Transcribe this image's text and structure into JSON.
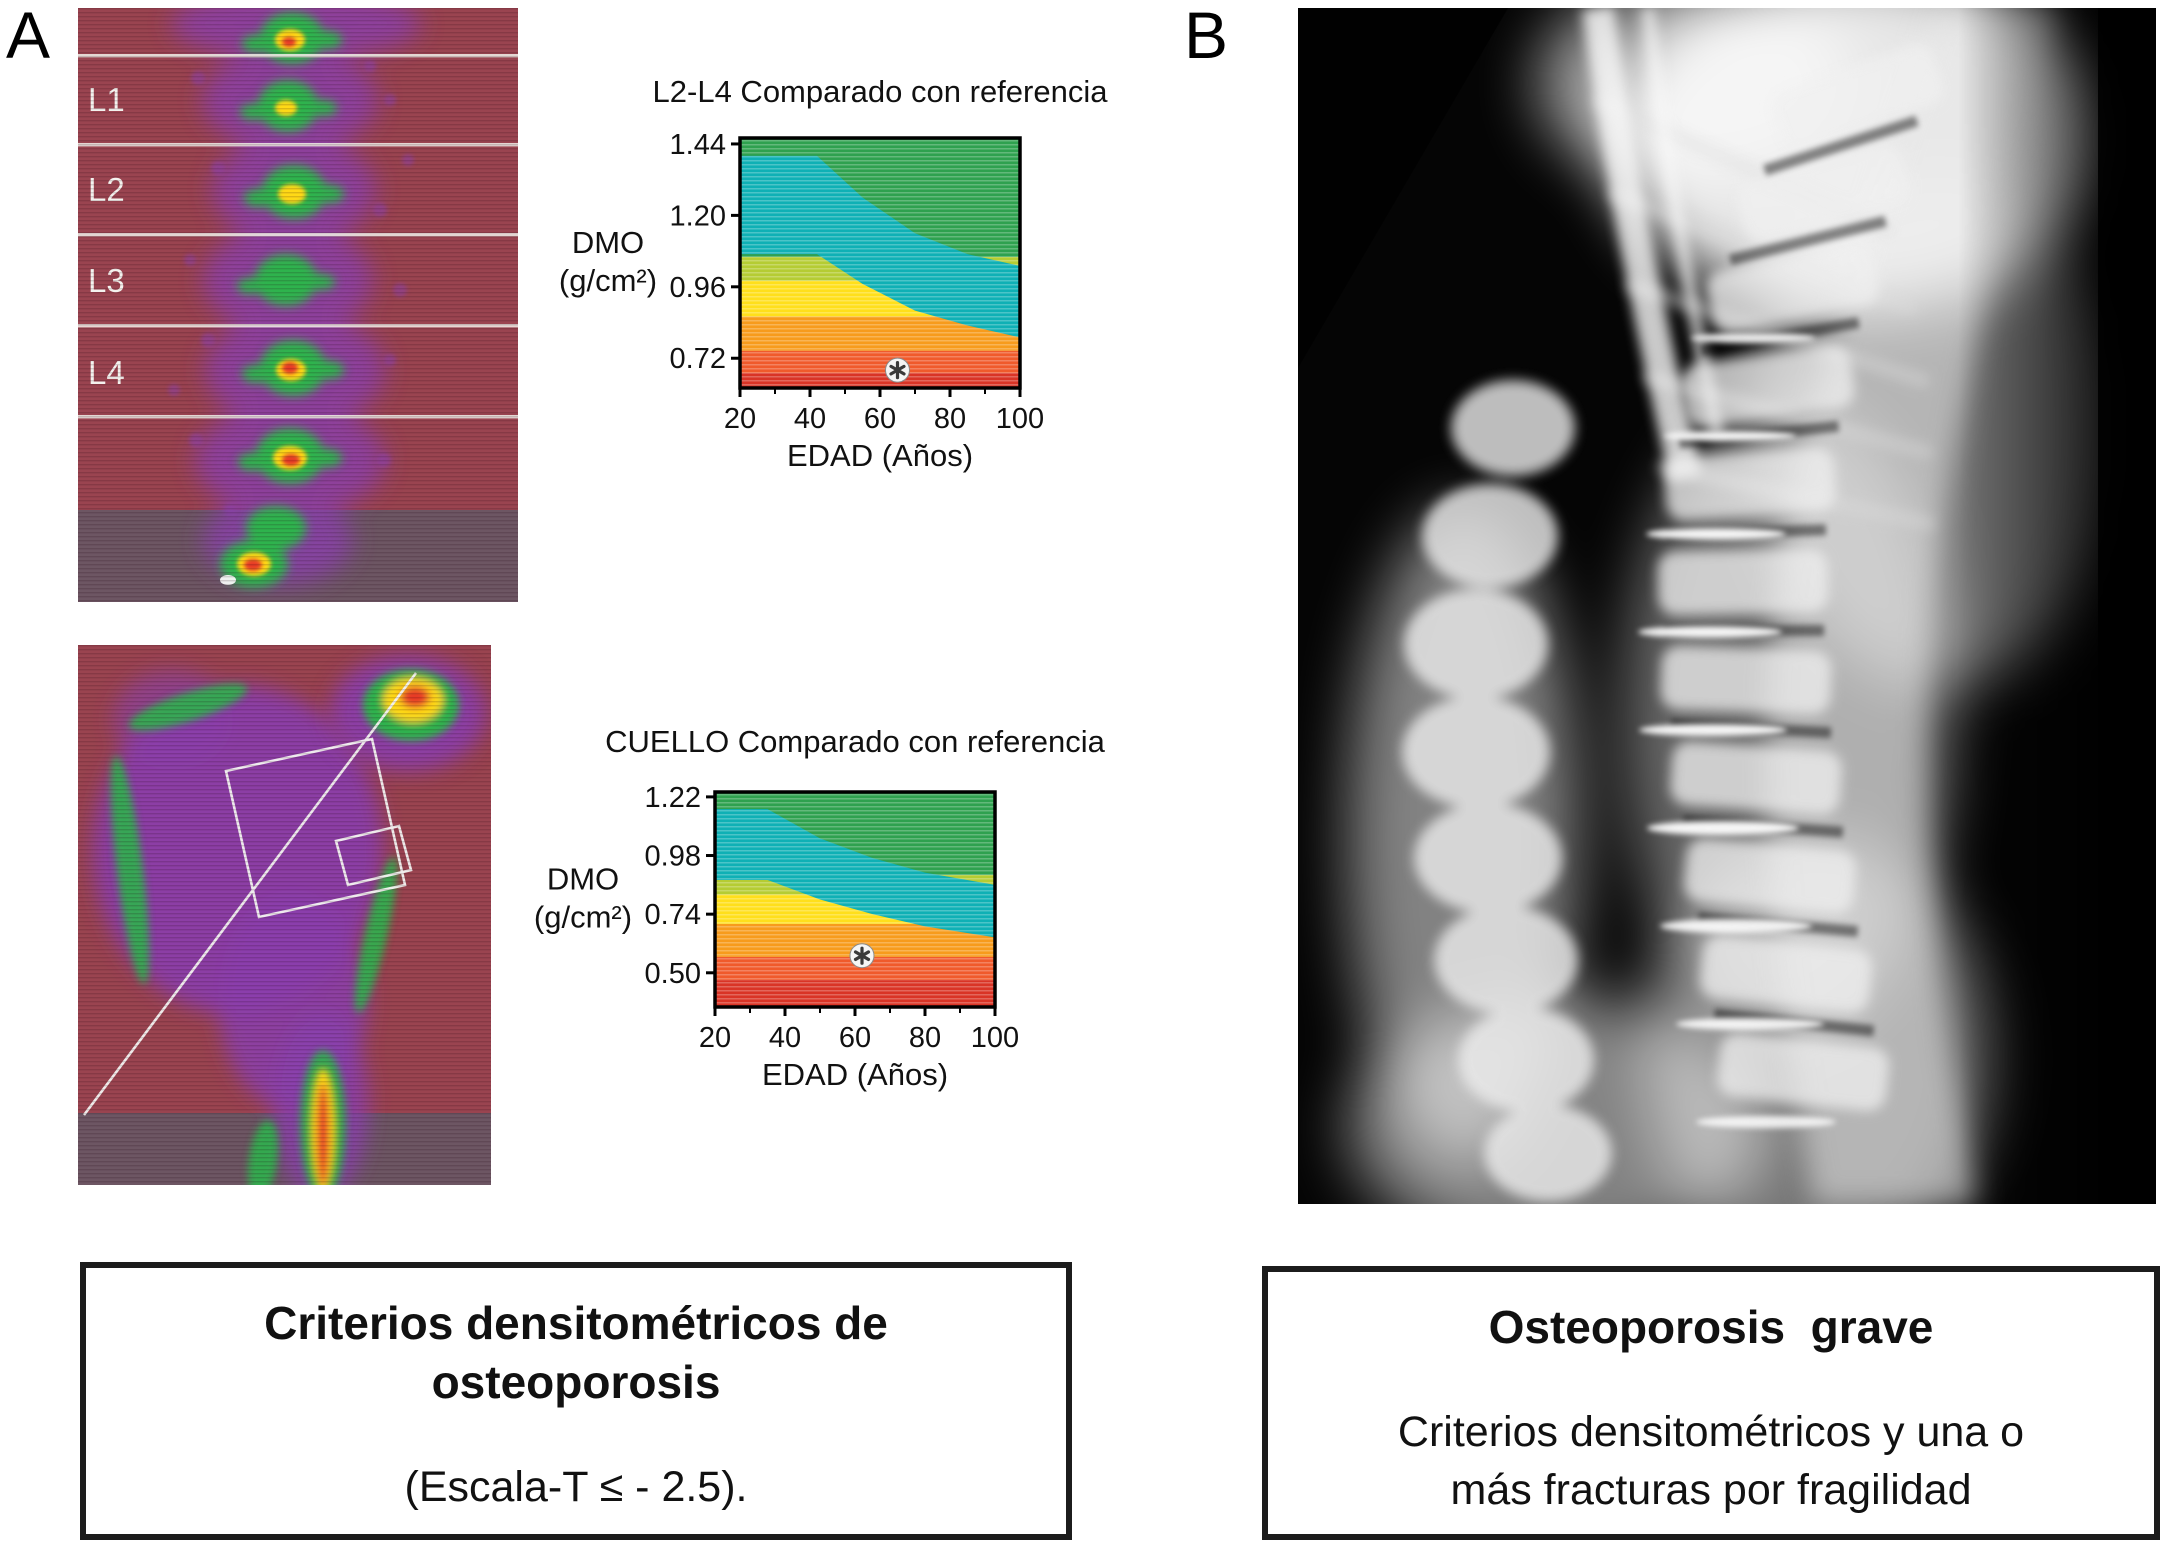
{
  "panelA": {
    "label": "A",
    "spine_scan": {
      "vertebra_labels": [
        "L1",
        "L2",
        "L3",
        "L4"
      ]
    },
    "scan_palette": {
      "background_red": "#9a4450",
      "footer_gray": "#6d5663",
      "purple": "#8b3fae",
      "green": "#2fb34d",
      "yellow": "#ffd918",
      "hot_red": "#e73a28"
    },
    "caption": {
      "title": "Criterios densitométricos de osteoporosis",
      "criterion": "(Escala-T ≤ - 2.5)."
    }
  },
  "panelB": {
    "label": "B",
    "caption": {
      "title": "Osteoporosis  grave",
      "body": "Criterios densitométricos y una o más fracturas por fragilidad"
    }
  },
  "chart_data": [
    {
      "type": "area",
      "title": "L2-L4 Comparado con referencia",
      "xlabel": "EDAD (Años)",
      "ylabel": "DMO (g/cm²)",
      "xlim": [
        20,
        100
      ],
      "ylim": [
        0.62,
        1.46
      ],
      "xticks": [
        20,
        40,
        60,
        80,
        100
      ],
      "yticks": [
        0.72,
        0.96,
        1.2,
        1.44
      ],
      "grid": false,
      "legend": false,
      "bands_horizontal": [
        {
          "zone": "green",
          "color": "#2fa14f",
          "from": 1.06,
          "to": 1.46
        },
        {
          "zone": "yellow-green",
          "color": "#b5cc33",
          "from": 0.98,
          "to": 1.06
        },
        {
          "zone": "yellow",
          "color": "#ffdf1b",
          "from": 0.86,
          "to": 0.98
        },
        {
          "zone": "orange",
          "color": "#f79b1c",
          "from": 0.745,
          "to": 0.86
        },
        {
          "zone": "red-orange",
          "color": "#f05a2b",
          "from": 0.67,
          "to": 0.745
        },
        {
          "zone": "red",
          "color": "#d93426",
          "from": 0.62,
          "to": 0.67
        }
      ],
      "reference_band": {
        "label": "age-matched reference range",
        "color": "#0fb0b5",
        "x": [
          20,
          42,
          55,
          70,
          85,
          100
        ],
        "top": [
          1.4,
          1.4,
          1.26,
          1.14,
          1.07,
          1.03
        ],
        "bottom": [
          1.07,
          1.07,
          0.97,
          0.88,
          0.83,
          0.79
        ]
      },
      "marker": {
        "x": 65,
        "y": 0.68,
        "symbol": "*"
      }
    },
    {
      "type": "area",
      "title": "CUELLO Comparado con referencia",
      "xlabel": "EDAD (Años)",
      "ylabel": "DMO (g/cm²)",
      "xlim": [
        20,
        100
      ],
      "ylim": [
        0.36,
        1.24
      ],
      "xticks": [
        20,
        40,
        60,
        80,
        100
      ],
      "yticks": [
        0.5,
        0.74,
        0.98,
        1.22
      ],
      "grid": false,
      "legend": false,
      "bands_horizontal": [
        {
          "zone": "green",
          "color": "#2fa14f",
          "from": 0.9,
          "to": 1.24
        },
        {
          "zone": "yellow-green",
          "color": "#b5cc33",
          "from": 0.82,
          "to": 0.9
        },
        {
          "zone": "yellow",
          "color": "#ffdf1b",
          "from": 0.7,
          "to": 0.82
        },
        {
          "zone": "orange",
          "color": "#f79b1c",
          "from": 0.565,
          "to": 0.7
        },
        {
          "zone": "red-orange",
          "color": "#f05a2b",
          "from": 0.47,
          "to": 0.565
        },
        {
          "zone": "red",
          "color": "#d93426",
          "from": 0.36,
          "to": 0.47
        }
      ],
      "reference_band": {
        "label": "age-matched reference range",
        "color": "#0fb0b5",
        "x": [
          20,
          35,
          50,
          65,
          80,
          100
        ],
        "top": [
          1.17,
          1.17,
          1.05,
          0.97,
          0.91,
          0.86
        ],
        "bottom": [
          0.88,
          0.88,
          0.8,
          0.74,
          0.69,
          0.645
        ]
      },
      "marker": {
        "x": 62,
        "y": 0.57,
        "symbol": "*"
      }
    }
  ]
}
